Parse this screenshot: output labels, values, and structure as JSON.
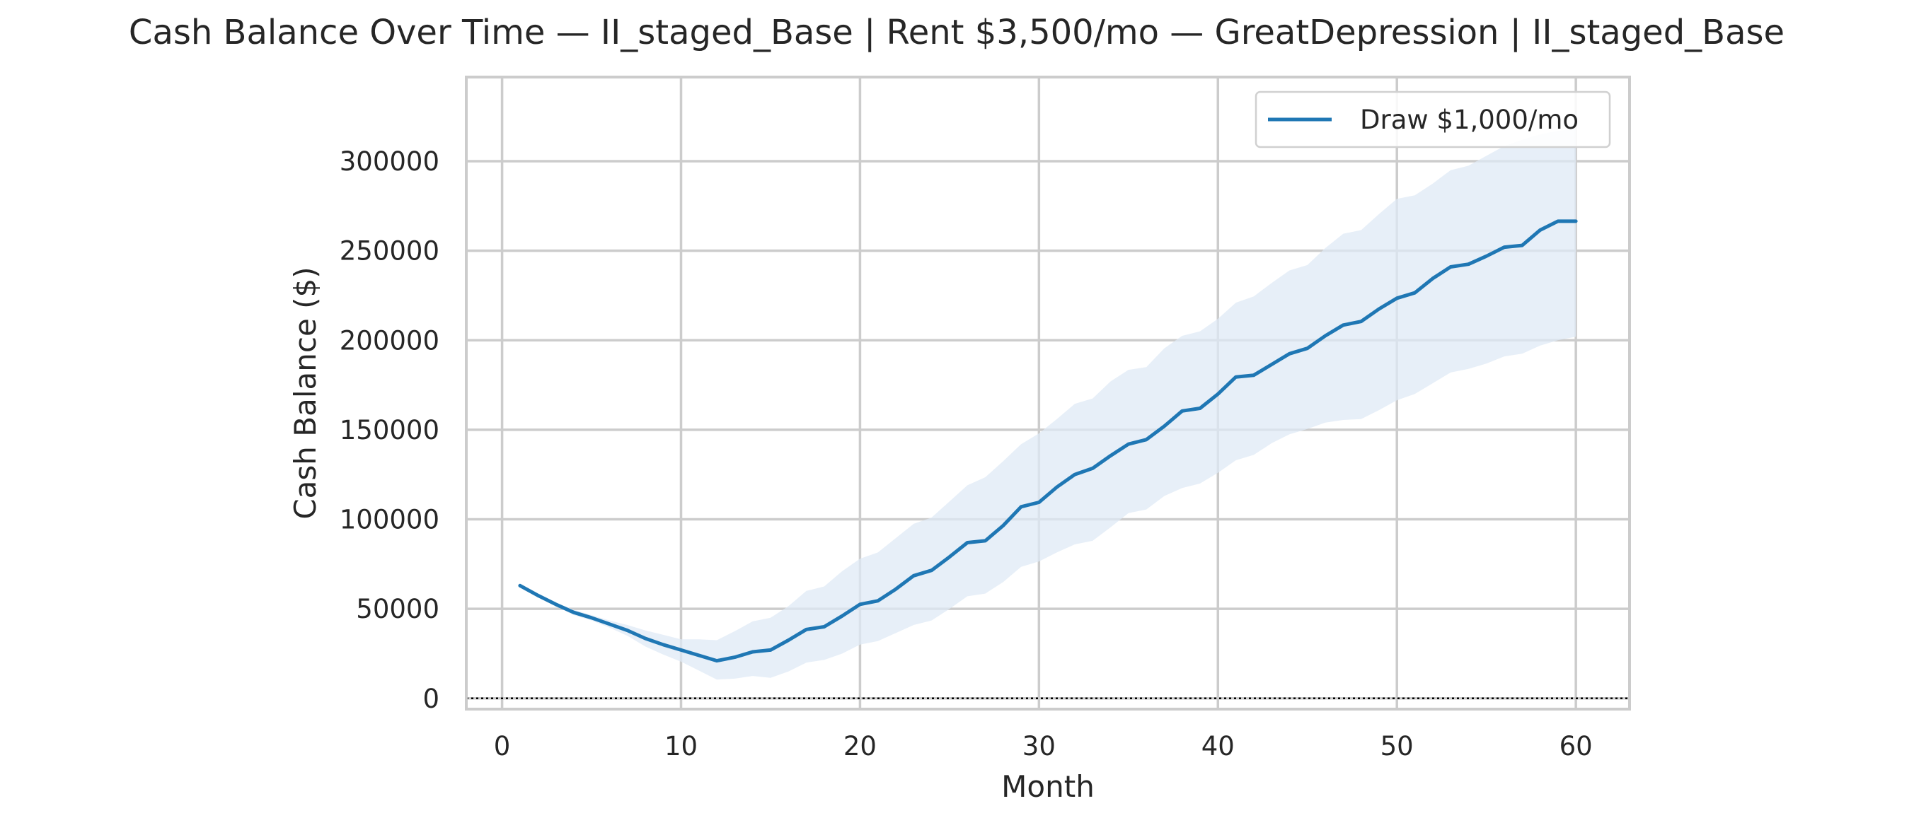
{
  "chart_data": {
    "type": "line",
    "title": "Cash Balance Over Time — II_staged_Base | Rent $3,500/mo — GreatDepression | II_staged_Base",
    "xlabel": "Month",
    "ylabel": "Cash Balance ($)",
    "xlim": [
      -2,
      63
    ],
    "ylim": [
      -6000,
      347000
    ],
    "xticks": [
      0,
      10,
      20,
      30,
      40,
      50,
      60
    ],
    "yticks": [
      0,
      50000,
      100000,
      150000,
      200000,
      250000,
      300000
    ],
    "grid": true,
    "legend_position": "top-right",
    "zero_line": {
      "y": 0,
      "style": "dotted",
      "color": "#000000"
    },
    "series": [
      {
        "name": "Draw $1,000/mo",
        "color": "#1f77b4",
        "band_color": "#dfeaf6",
        "x": [
          1,
          2,
          3,
          4,
          5,
          6,
          7,
          8,
          9,
          10,
          11,
          12,
          13,
          14,
          15,
          16,
          17,
          18,
          19,
          20,
          21,
          22,
          23,
          24,
          25,
          26,
          27,
          28,
          29,
          30,
          31,
          32,
          33,
          34,
          35,
          36,
          37,
          38,
          39,
          40,
          41,
          42,
          43,
          44,
          45,
          46,
          47,
          48,
          49,
          50,
          51,
          52,
          53,
          54,
          55,
          56,
          57,
          58,
          59,
          60
        ],
        "values": [
          63000,
          57500,
          52500,
          48000,
          45000,
          41500,
          38000,
          33500,
          30000,
          27000,
          24000,
          21000,
          23000,
          26000,
          27000,
          32500,
          38500,
          40000,
          46000,
          52500,
          54500,
          61000,
          68500,
          71500,
          79000,
          87000,
          88000,
          96500,
          107000,
          109500,
          118000,
          125000,
          128500,
          135500,
          142000,
          144500,
          152000,
          160500,
          162000,
          170000,
          179500,
          180500,
          186500,
          192500,
          195500,
          202500,
          208500,
          210500,
          217500,
          223500,
          226500,
          234500,
          241000,
          242500,
          247000,
          252000,
          253000,
          261500,
          266500,
          266500
        ],
        "band_upper": [
          63000,
          58000,
          53500,
          49500,
          46500,
          43500,
          41000,
          38000,
          35500,
          33000,
          33000,
          32500,
          37500,
          43000,
          45000,
          51500,
          60000,
          62500,
          71000,
          78000,
          81500,
          89500,
          97500,
          101000,
          110000,
          119000,
          123500,
          132500,
          142000,
          148000,
          156000,
          164500,
          167500,
          177000,
          183500,
          185000,
          195500,
          202500,
          205000,
          212000,
          221000,
          224500,
          232000,
          239000,
          242000,
          251500,
          259500,
          261500,
          270500,
          279000,
          281000,
          287500,
          295000,
          297500,
          303000,
          308500,
          312000,
          315000,
          317000,
          318000
        ],
        "band_lower": [
          63000,
          57000,
          51500,
          46500,
          43500,
          39500,
          35000,
          29000,
          24500,
          20500,
          15500,
          10500,
          11000,
          12500,
          11500,
          15000,
          20000,
          21500,
          25000,
          30000,
          32000,
          36500,
          41000,
          43500,
          50000,
          57000,
          58500,
          65000,
          73500,
          76500,
          81500,
          86000,
          88000,
          95500,
          103500,
          105500,
          113000,
          117500,
          120000,
          126000,
          133000,
          136000,
          142500,
          147500,
          150500,
          154000,
          155500,
          156000,
          161000,
          166500,
          170000,
          176000,
          182000,
          184000,
          187000,
          191000,
          192500,
          197000,
          200000,
          202000
        ]
      }
    ]
  }
}
